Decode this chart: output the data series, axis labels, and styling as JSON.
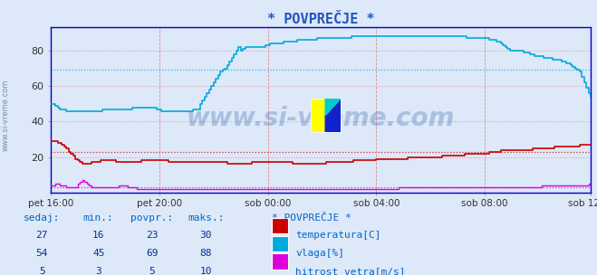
{
  "title": "* POVPREČJE *",
  "background_color": "#dde8f8",
  "plot_bg_color": "#dde8f8",
  "ylim": [
    0,
    93
  ],
  "yticks": [
    20,
    40,
    60,
    80
  ],
  "xticklabels": [
    "pet 16:00",
    "pet 20:00",
    "sob 00:00",
    "sob 04:00",
    "sob 08:00",
    "sob 12:00"
  ],
  "watermark": "www.si-vreme.com",
  "temp_color": "#cc0000",
  "vlaga_color": "#00aadd",
  "hitrost_color": "#dd00dd",
  "temp_ref": 23,
  "vlaga_ref": 69,
  "legend_title": "* POVPREČJE *",
  "legend_items": [
    "temperatura[C]",
    "vlaga[%]",
    "hitrost vetra[m/s]"
  ],
  "legend_colors": [
    "#cc0000",
    "#00aadd",
    "#dd00dd"
  ],
  "table_headers": [
    "sedaj:",
    "min.:",
    "povpr.:",
    "maks.:"
  ],
  "table_rows": [
    [
      27,
      16,
      23,
      30
    ],
    [
      54,
      45,
      69,
      88
    ],
    [
      5,
      3,
      5,
      10
    ]
  ],
  "hitrost_ref": 3,
  "spine_color": "#0000cc",
  "vgrid_color": "#dd6666",
  "hgrid_color": "#dd8888",
  "tick_color": "#333333",
  "header_color": "#0066cc",
  "table_num_color": "#003399",
  "legend_text_color": "#0066cc"
}
